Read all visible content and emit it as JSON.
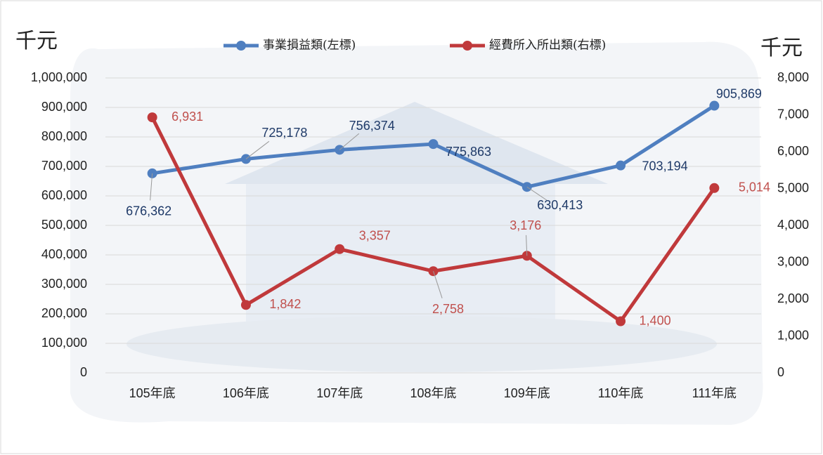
{
  "chart_data": {
    "type": "line",
    "y_unit_label": "千元",
    "y2_unit_label": "千元",
    "categories": [
      "105年底",
      "106年底",
      "107年底",
      "108年底",
      "109年底",
      "110年底",
      "111年底"
    ],
    "series": [
      {
        "name": "事業損益類(左標)",
        "color": "#4f7fc0",
        "axis": "y",
        "values": [
          676362,
          725178,
          756374,
          775863,
          630413,
          703194,
          905869
        ],
        "value_labels": [
          "676,362",
          "725,178",
          "756,374",
          "775,863",
          "630,413",
          "703,194",
          "905,869"
        ]
      },
      {
        "name": "經費所入所出類(右標)",
        "color": "#c0393b",
        "axis": "y2",
        "values": [
          6931,
          1842,
          3357,
          2758,
          3176,
          1400,
          5014
        ],
        "value_labels": [
          "6,931",
          "1,842",
          "3,357",
          "2,758",
          "3,176",
          "1,400",
          "5,014"
        ]
      }
    ],
    "ylim": [
      0,
      1000000
    ],
    "yticks": [
      0,
      {
        "value": 100000,
        "label": "100,000"
      },
      {
        "value": 200000,
        "label": "200,000"
      },
      {
        "value": 300000,
        "label": "300,000"
      },
      {
        "value": 400000,
        "label": "400,000"
      },
      {
        "value": 500000,
        "label": "500,000"
      },
      {
        "value": 600000,
        "label": "600,000"
      },
      {
        "value": 700000,
        "label": "700,000"
      },
      {
        "value": 800000,
        "label": "800,000"
      },
      {
        "value": 900000,
        "label": "900,000"
      },
      {
        "value": 1000000,
        "label": "1,000,000"
      }
    ],
    "y2lim": [
      0,
      8000
    ],
    "y2ticks": [
      0,
      {
        "value": 1000,
        "label": "1,000"
      },
      {
        "value": 2000,
        "label": "2,000"
      },
      {
        "value": 3000,
        "label": "3,000"
      },
      {
        "value": 4000,
        "label": "4,000"
      },
      {
        "value": 5000,
        "label": "5,000"
      },
      {
        "value": 6000,
        "label": "6,000"
      },
      {
        "value": 7000,
        "label": "7,000"
      },
      {
        "value": 8000,
        "label": "8,000"
      }
    ],
    "grid": true
  }
}
